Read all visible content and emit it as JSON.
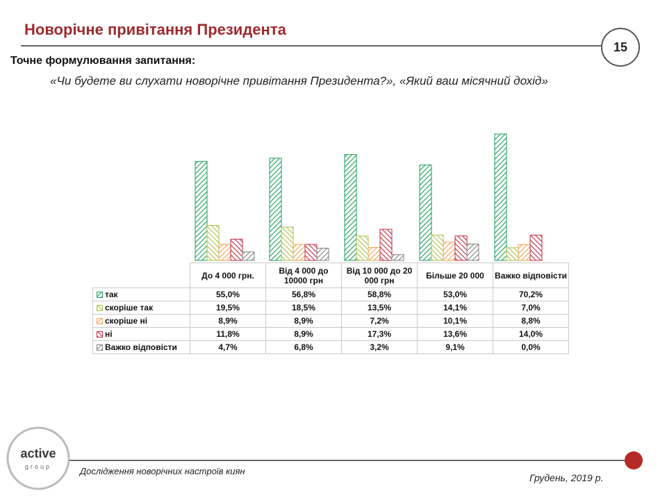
{
  "header": {
    "title": "Новорічне привітання Президента",
    "page_number": 15,
    "question_label": "Точне формулювання запитання:",
    "question": "«Чи будете ви слухати новорічне привітання Президента?», «Який ваш місячний дохід»"
  },
  "chart_data": {
    "type": "bar",
    "categories": [
      "До 4 000 грн.",
      "Від 4 000 до 10000 грн",
      "Від 10 000 до 20 000 грн",
      "Більше 20 000",
      "Важко відповісти"
    ],
    "series": [
      {
        "name": "так",
        "color": "#1a9e5a",
        "values": [
          55.0,
          56.8,
          58.8,
          53.0,
          70.2
        ],
        "value_labels": [
          "55,0%",
          "56,8%",
          "58,8%",
          "53,0%",
          "70,2%"
        ]
      },
      {
        "name": "скоріше так",
        "color": "#a9c24a",
        "values": [
          19.5,
          18.5,
          13.5,
          14.1,
          7.0
        ],
        "value_labels": [
          "19,5%",
          "18,5%",
          "13,5%",
          "14,1%",
          "7,0%"
        ]
      },
      {
        "name": "скоріше ні",
        "color": "#f0a24e",
        "values": [
          8.9,
          8.9,
          7.2,
          10.1,
          8.8
        ],
        "value_labels": [
          "8,9%",
          "8,9%",
          "7,2%",
          "10,1%",
          "8,8%"
        ]
      },
      {
        "name": "ні",
        "color": "#c4283f",
        "values": [
          11.8,
          8.9,
          17.3,
          13.6,
          14.0
        ],
        "value_labels": [
          "11,8%",
          "8,9%",
          "17,3%",
          "13,6%",
          "14,0%"
        ]
      },
      {
        "name": "Важко відповісти",
        "color": "#7f7f7f",
        "values": [
          4.7,
          6.8,
          3.2,
          9.1,
          0.0
        ],
        "value_labels": [
          "4,7%",
          "6,8%",
          "3,2%",
          "9,1%",
          "0,0%"
        ]
      }
    ]
  },
  "footer": {
    "logo": "active",
    "logo_sub": "group",
    "study": "Дослідження новорічних настроїв киян",
    "date": "Грудень, 2019 р."
  }
}
